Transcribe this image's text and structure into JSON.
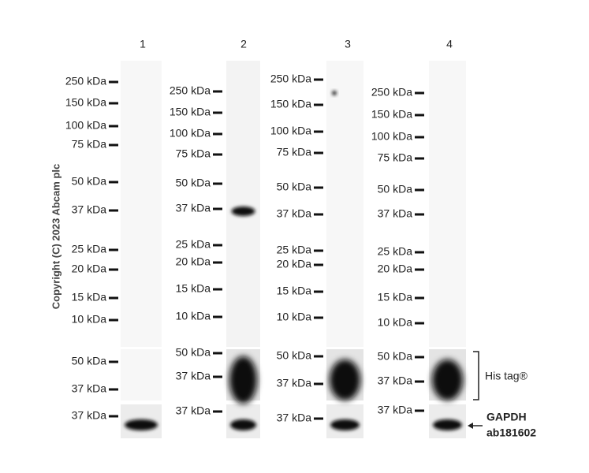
{
  "lane_labels": [
    "1",
    "2",
    "3",
    "4"
  ],
  "lanes": [
    {
      "markers": [
        "250 kDa",
        "150 kDa",
        "100 kDa",
        "75 kDa",
        "50 kDa",
        "37 kDa",
        "25 kDa",
        "20 kDa",
        "15 kDa",
        "10 kDa"
      ],
      "his_markers": [
        "50 kDa",
        "37 kDa"
      ],
      "gapdh_markers": [
        "37 kDa"
      ]
    },
    {
      "markers": [
        "250 kDa",
        "150 kDa",
        "100 kDa",
        "75 kDa",
        "50 kDa",
        "37 kDa",
        "25 kDa",
        "20 kDa",
        "15 kDa",
        "10 kDa"
      ],
      "his_markers": [
        "50 kDa",
        "37 kDa"
      ],
      "gapdh_markers": [
        "37 kDa"
      ]
    },
    {
      "markers": [
        "250 kDa",
        "150 kDa",
        "100 kDa",
        "75 kDa",
        "50 kDa",
        "37 kDa",
        "25 kDa",
        "20 kDa",
        "15 kDa",
        "10 kDa"
      ],
      "his_markers": [
        "50 kDa",
        "37 kDa"
      ],
      "gapdh_markers": [
        "37 kDa"
      ]
    },
    {
      "markers": [
        "250 kDa",
        "150 kDa",
        "100 kDa",
        "75 kDa",
        "50 kDa",
        "37 kDa",
        "25 kDa",
        "20 kDa",
        "15 kDa",
        "10 kDa"
      ],
      "his_markers": [
        "50 kDa",
        "37 kDa"
      ],
      "gapdh_markers": [
        "37 kDa"
      ]
    }
  ],
  "annotations": {
    "his_tag": "His tag®",
    "gapdh": "GAPDH",
    "antibody": "ab181602"
  },
  "copyright": "Copyright (C) 2023 Abcam plc"
}
